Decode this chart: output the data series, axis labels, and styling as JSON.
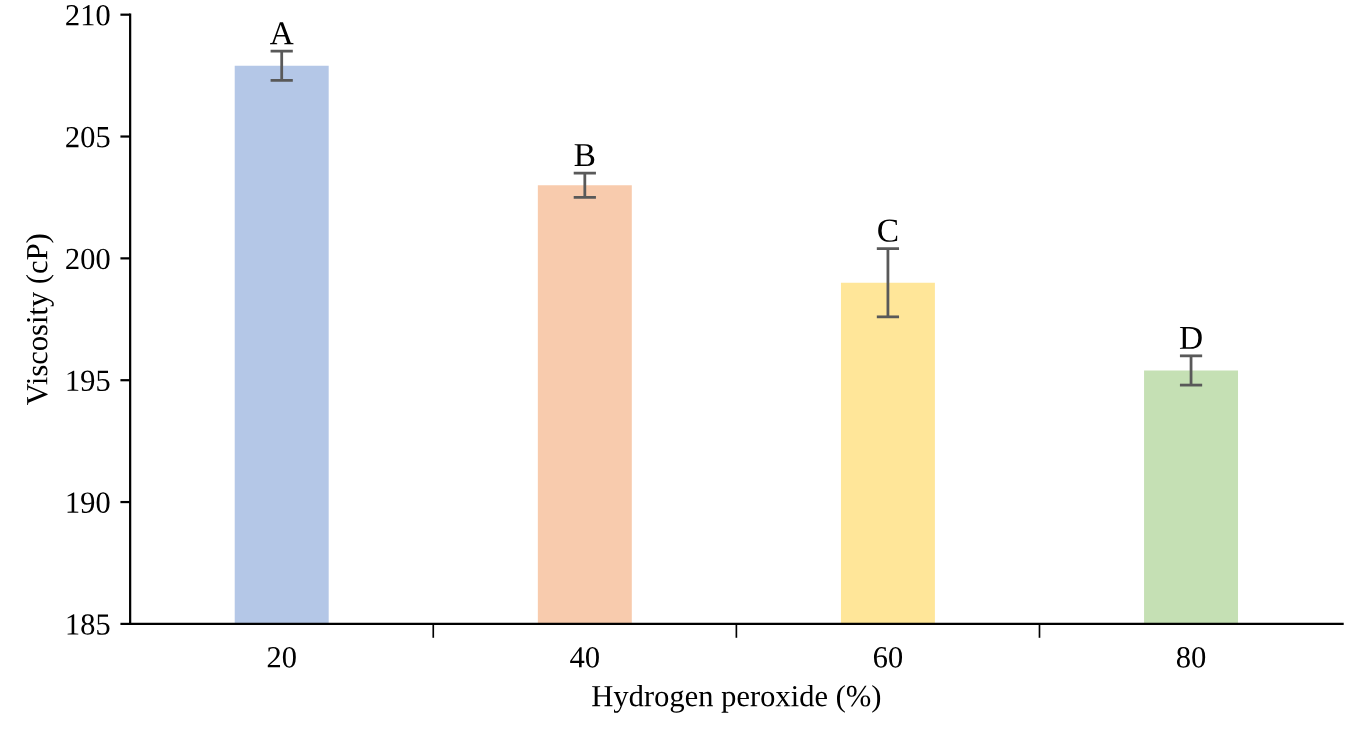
{
  "chart_data": {
    "type": "bar",
    "xlabel": "Hydrogen peroxide (%)",
    "ylabel": "Viscosity (cP)",
    "categories": [
      "20",
      "40",
      "60",
      "80"
    ],
    "values": [
      207.9,
      203.0,
      199.0,
      195.4
    ],
    "colors": [
      "#b4c7e7",
      "#f8cbad",
      "#ffe699",
      "#c5e0b4"
    ],
    "errors": [
      0.6,
      0.5,
      1.4,
      0.6
    ],
    "ylim": [
      185,
      210
    ],
    "yticks": [
      185,
      190,
      195,
      200,
      205,
      210
    ],
    "grid": false,
    "annotations": [
      {
        "text": "A",
        "x": "20",
        "y": 208.5
      },
      {
        "text": "B",
        "x": "40",
        "y": 203.5
      },
      {
        "text": "C",
        "x": "60",
        "y": 200.4
      },
      {
        "text": "D",
        "x": "80",
        "y": 196.0
      }
    ]
  }
}
